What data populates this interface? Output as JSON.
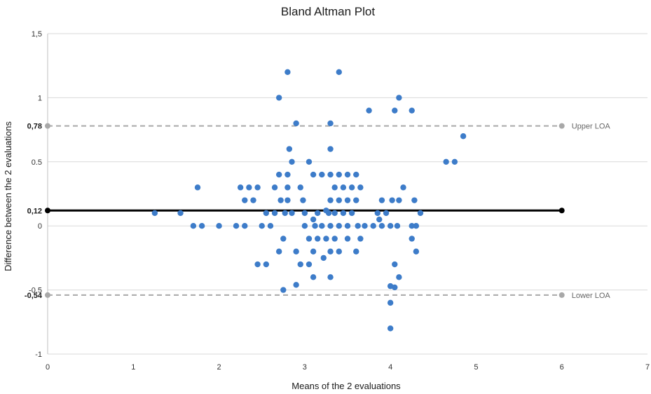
{
  "chart_data": {
    "type": "scatter",
    "title": "Bland Altman Plot",
    "xlabel": "Means of the 2 evaluations",
    "ylabel": "Difference between the 2 evaluations",
    "xlim": [
      0,
      7
    ],
    "ylim": [
      -1,
      1.5
    ],
    "x_ticks": [
      0,
      1,
      2,
      3,
      4,
      5,
      6,
      7
    ],
    "y_ticks": [
      -1,
      -0.5,
      0,
      0.5,
      1,
      1.5
    ],
    "y_tick_labels": [
      "-1",
      "-0,5",
      "0",
      "0.5",
      "1",
      "1,5"
    ],
    "grid": "horizontal",
    "point_color": "#3d7cc9",
    "series": [
      {
        "points": [
          [
            1.25,
            0.1
          ],
          [
            1.55,
            0.1
          ],
          [
            1.7,
            0
          ],
          [
            1.75,
            0.3
          ],
          [
            1.8,
            0
          ],
          [
            2.0,
            0
          ],
          [
            2.2,
            0
          ],
          [
            2.25,
            0.3
          ],
          [
            2.3,
            0
          ],
          [
            2.3,
            0.2
          ],
          [
            2.35,
            0.3
          ],
          [
            2.4,
            0.2
          ],
          [
            2.45,
            0.3
          ],
          [
            2.45,
            -0.3
          ],
          [
            2.5,
            0
          ],
          [
            2.55,
            -0.3
          ],
          [
            2.55,
            0.1
          ],
          [
            2.6,
            0
          ],
          [
            2.65,
            0.1
          ],
          [
            2.65,
            0.3
          ],
          [
            2.7,
            1.0
          ],
          [
            2.7,
            0.4
          ],
          [
            2.7,
            -0.2
          ],
          [
            2.72,
            0.2
          ],
          [
            2.75,
            -0.5
          ],
          [
            2.75,
            -0.1
          ],
          [
            2.77,
            0.1
          ],
          [
            2.8,
            1.2
          ],
          [
            2.8,
            0.3
          ],
          [
            2.8,
            0.4
          ],
          [
            2.8,
            0.2
          ],
          [
            2.82,
            0.6
          ],
          [
            2.85,
            0.1
          ],
          [
            2.85,
            0.5
          ],
          [
            2.9,
            0.8
          ],
          [
            2.9,
            -0.2
          ],
          [
            2.9,
            -0.46
          ],
          [
            2.95,
            -0.3
          ],
          [
            2.95,
            0.3
          ],
          [
            2.98,
            0.2
          ],
          [
            3.0,
            0
          ],
          [
            3.0,
            0.1
          ],
          [
            3.05,
            0.5
          ],
          [
            3.05,
            -0.3
          ],
          [
            3.05,
            -0.1
          ],
          [
            3.1,
            0.4
          ],
          [
            3.1,
            0.05
          ],
          [
            3.1,
            -0.2
          ],
          [
            3.1,
            -0.4
          ],
          [
            3.12,
            0
          ],
          [
            3.15,
            0.1
          ],
          [
            3.15,
            -0.1
          ],
          [
            3.2,
            0.4
          ],
          [
            3.2,
            0
          ],
          [
            3.22,
            -0.25
          ],
          [
            3.25,
            0.12
          ],
          [
            3.25,
            -0.1
          ],
          [
            3.28,
            0.1
          ],
          [
            3.3,
            0.8
          ],
          [
            3.3,
            0.6
          ],
          [
            3.3,
            0.4
          ],
          [
            3.3,
            0.2
          ],
          [
            3.3,
            0
          ],
          [
            3.3,
            -0.2
          ],
          [
            3.3,
            -0.4
          ],
          [
            3.35,
            0.3
          ],
          [
            3.35,
            0.1
          ],
          [
            3.35,
            -0.1
          ],
          [
            3.4,
            1.2
          ],
          [
            3.4,
            0.4
          ],
          [
            3.4,
            0.2
          ],
          [
            3.4,
            0
          ],
          [
            3.4,
            -0.2
          ],
          [
            3.45,
            0.3
          ],
          [
            3.45,
            0.1
          ],
          [
            3.5,
            0.4
          ],
          [
            3.5,
            0.2
          ],
          [
            3.5,
            0
          ],
          [
            3.5,
            -0.1
          ],
          [
            3.55,
            0.3
          ],
          [
            3.55,
            0.1
          ],
          [
            3.6,
            0.4
          ],
          [
            3.6,
            0.2
          ],
          [
            3.6,
            -0.2
          ],
          [
            3.62,
            0
          ],
          [
            3.65,
            -0.1
          ],
          [
            3.65,
            0.3
          ],
          [
            3.7,
            0
          ],
          [
            3.75,
            0.9
          ],
          [
            3.8,
            0
          ],
          [
            3.85,
            0.1
          ],
          [
            3.87,
            0.05
          ],
          [
            3.9,
            0.2
          ],
          [
            3.9,
            0
          ],
          [
            3.95,
            0.1
          ],
          [
            4.0,
            -0.47
          ],
          [
            4.0,
            -0.6
          ],
          [
            4.0,
            -0.8
          ],
          [
            4.0,
            0
          ],
          [
            4.02,
            0.2
          ],
          [
            4.05,
            0.9
          ],
          [
            4.05,
            -0.48
          ],
          [
            4.05,
            -0.3
          ],
          [
            4.08,
            0
          ],
          [
            4.1,
            1.0
          ],
          [
            4.1,
            0.2
          ],
          [
            4.1,
            -0.4
          ],
          [
            4.15,
            0.3
          ],
          [
            4.25,
            0.9
          ],
          [
            4.25,
            0
          ],
          [
            4.25,
            -0.1
          ],
          [
            4.28,
            0.2
          ],
          [
            4.3,
            -0.2
          ],
          [
            4.3,
            0
          ],
          [
            4.35,
            0.1
          ],
          [
            4.65,
            0.5
          ],
          [
            4.75,
            0.5
          ],
          [
            4.85,
            0.7
          ]
        ]
      }
    ],
    "reference_lines": [
      {
        "name": "mean",
        "y": 0.12,
        "label": "0,12",
        "color": "#000000",
        "dash": false,
        "x_end": 6
      },
      {
        "name": "upper",
        "y": 0.78,
        "label": "0,78",
        "text": "Upper LOA",
        "color": "#a8a8a8",
        "dash": true,
        "x_end": 6
      },
      {
        "name": "lower",
        "y": -0.54,
        "label": "-0,54",
        "text": "Lower LOA",
        "color": "#a8a8a8",
        "dash": true,
        "x_end": 6
      }
    ]
  }
}
